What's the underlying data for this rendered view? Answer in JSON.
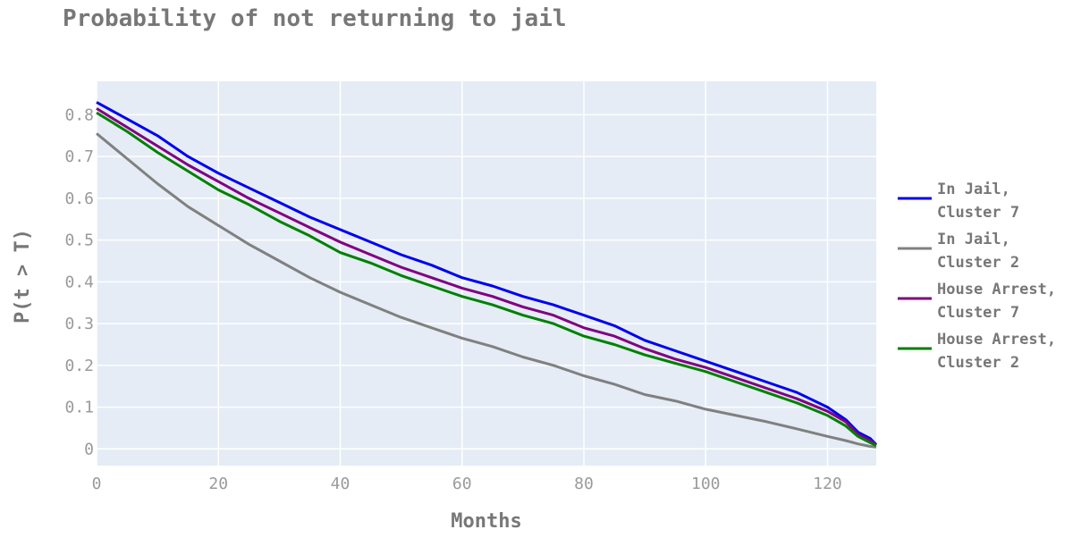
{
  "chart_data": {
    "type": "line",
    "title": "Probability of not returning to jail",
    "xlabel": "Months",
    "ylabel": "P(t > T)",
    "xlim": [
      0,
      128
    ],
    "ylim": [
      -0.04,
      0.88
    ],
    "x_ticks": [
      0,
      20,
      40,
      60,
      80,
      100,
      120
    ],
    "y_ticks": [
      0,
      0.1,
      0.2,
      0.3,
      0.4,
      0.5,
      0.6,
      0.7,
      0.8
    ],
    "y_tick_labels": [
      "0",
      "0.1",
      "0.2",
      "0.3",
      "0.4",
      "0.5",
      "0.6",
      "0.7",
      "0.8"
    ],
    "grid": true,
    "legend_position": "right",
    "plot_background": "#e5ecf6",
    "series": [
      {
        "name_lines": [
          "In Jail,",
          "Cluster 7"
        ],
        "color": "#0000ee",
        "x": [
          0,
          5,
          10,
          15,
          20,
          25,
          30,
          35,
          40,
          45,
          50,
          55,
          60,
          65,
          70,
          75,
          80,
          85,
          90,
          95,
          100,
          105,
          110,
          115,
          120,
          123,
          125,
          127,
          128
        ],
        "y": [
          0.83,
          0.79,
          0.75,
          0.7,
          0.66,
          0.625,
          0.59,
          0.555,
          0.525,
          0.495,
          0.465,
          0.44,
          0.41,
          0.39,
          0.365,
          0.345,
          0.32,
          0.295,
          0.26,
          0.235,
          0.21,
          0.185,
          0.16,
          0.135,
          0.1,
          0.07,
          0.04,
          0.025,
          0.01
        ]
      },
      {
        "name_lines": [
          "In Jail,",
          "Cluster 2"
        ],
        "color": "#808080",
        "x": [
          0,
          5,
          10,
          15,
          20,
          25,
          30,
          35,
          40,
          45,
          50,
          55,
          60,
          65,
          70,
          75,
          80,
          85,
          90,
          95,
          100,
          105,
          110,
          115,
          120,
          123,
          125,
          127,
          128
        ],
        "y": [
          0.755,
          0.695,
          0.635,
          0.58,
          0.535,
          0.49,
          0.45,
          0.41,
          0.375,
          0.345,
          0.315,
          0.29,
          0.265,
          0.245,
          0.22,
          0.2,
          0.175,
          0.155,
          0.13,
          0.115,
          0.095,
          0.08,
          0.065,
          0.048,
          0.03,
          0.02,
          0.012,
          0.006,
          0.004
        ]
      },
      {
        "name_lines": [
          "House Arrest,",
          "Cluster 7"
        ],
        "color": "#800080",
        "x": [
          0,
          5,
          10,
          15,
          20,
          25,
          30,
          35,
          40,
          45,
          50,
          55,
          60,
          65,
          70,
          75,
          80,
          85,
          90,
          95,
          100,
          105,
          110,
          115,
          120,
          123,
          125,
          127,
          128
        ],
        "y": [
          0.815,
          0.77,
          0.725,
          0.68,
          0.64,
          0.6,
          0.565,
          0.53,
          0.495,
          0.465,
          0.435,
          0.41,
          0.385,
          0.365,
          0.34,
          0.32,
          0.29,
          0.27,
          0.24,
          0.215,
          0.195,
          0.17,
          0.145,
          0.12,
          0.09,
          0.065,
          0.035,
          0.02,
          0.01
        ]
      },
      {
        "name_lines": [
          "House Arrest,",
          "Cluster 2"
        ],
        "color": "#008000",
        "x": [
          0,
          5,
          10,
          15,
          20,
          25,
          30,
          35,
          40,
          45,
          50,
          55,
          60,
          65,
          70,
          75,
          80,
          85,
          90,
          95,
          100,
          105,
          110,
          115,
          120,
          123,
          125,
          127,
          128
        ],
        "y": [
          0.805,
          0.76,
          0.71,
          0.665,
          0.62,
          0.585,
          0.545,
          0.51,
          0.47,
          0.445,
          0.415,
          0.39,
          0.365,
          0.345,
          0.32,
          0.3,
          0.27,
          0.25,
          0.225,
          0.205,
          0.185,
          0.16,
          0.135,
          0.11,
          0.08,
          0.055,
          0.03,
          0.015,
          0.008
        ]
      }
    ]
  }
}
